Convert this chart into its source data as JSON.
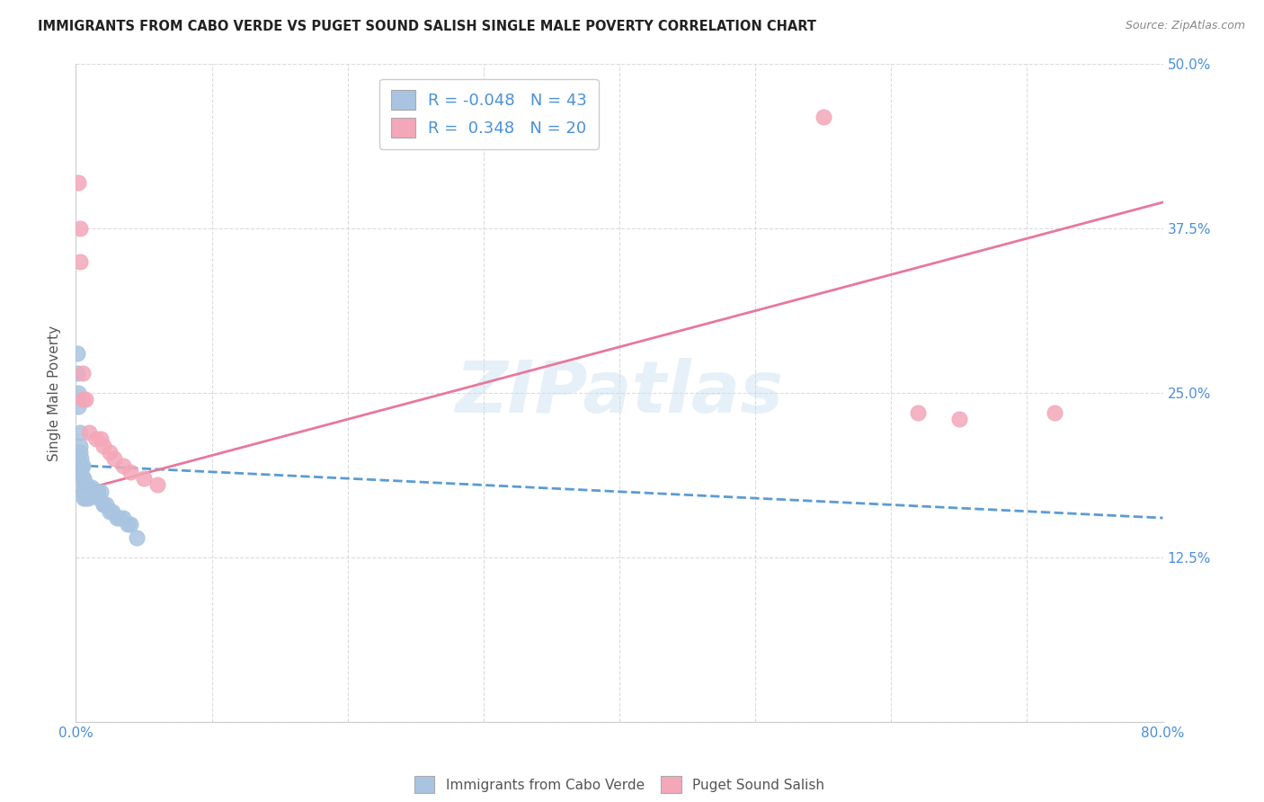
{
  "title": "IMMIGRANTS FROM CABO VERDE VS PUGET SOUND SALISH SINGLE MALE POVERTY CORRELATION CHART",
  "source": "Source: ZipAtlas.com",
  "ylabel": "Single Male Poverty",
  "xlim": [
    0.0,
    0.8
  ],
  "ylim": [
    0.0,
    0.5
  ],
  "blue_color": "#a8c4e0",
  "pink_color": "#f4a7b9",
  "blue_line_color": "#5b9bd5",
  "pink_line_color": "#e8789a",
  "blue_R": -0.048,
  "blue_N": 43,
  "pink_R": 0.348,
  "pink_N": 20,
  "legend_label_blue": "Immigrants from Cabo Verde",
  "legend_label_pink": "Puget Sound Salish",
  "watermark": "ZIPatlas",
  "blue_scatter_x": [
    0.001,
    0.001,
    0.002,
    0.002,
    0.003,
    0.003,
    0.003,
    0.003,
    0.004,
    0.004,
    0.004,
    0.005,
    0.005,
    0.005,
    0.006,
    0.006,
    0.006,
    0.007,
    0.007,
    0.008,
    0.008,
    0.009,
    0.009,
    0.01,
    0.01,
    0.012,
    0.012,
    0.014,
    0.015,
    0.016,
    0.017,
    0.018,
    0.02,
    0.02,
    0.022,
    0.025,
    0.027,
    0.03,
    0.032,
    0.035,
    0.038,
    0.04,
    0.045
  ],
  "blue_scatter_y": [
    0.28,
    0.265,
    0.25,
    0.24,
    0.22,
    0.21,
    0.205,
    0.195,
    0.2,
    0.195,
    0.19,
    0.195,
    0.185,
    0.175,
    0.185,
    0.18,
    0.17,
    0.175,
    0.17,
    0.18,
    0.175,
    0.175,
    0.17,
    0.175,
    0.175,
    0.175,
    0.178,
    0.175,
    0.175,
    0.175,
    0.17,
    0.175,
    0.165,
    0.165,
    0.165,
    0.16,
    0.16,
    0.155,
    0.155,
    0.155,
    0.15,
    0.15,
    0.14
  ],
  "pink_scatter_x": [
    0.002,
    0.003,
    0.003,
    0.005,
    0.005,
    0.007,
    0.01,
    0.015,
    0.018,
    0.02,
    0.025,
    0.028,
    0.035,
    0.04,
    0.05,
    0.06,
    0.55,
    0.62,
    0.65,
    0.72
  ],
  "pink_scatter_y": [
    0.41,
    0.375,
    0.35,
    0.265,
    0.245,
    0.245,
    0.22,
    0.215,
    0.215,
    0.21,
    0.205,
    0.2,
    0.195,
    0.19,
    0.185,
    0.18,
    0.46,
    0.235,
    0.23,
    0.235
  ],
  "blue_trend_x0": 0.0,
  "blue_trend_x1": 0.8,
  "blue_trend_y0": 0.195,
  "blue_trend_y1": 0.155,
  "pink_trend_x0": 0.0,
  "pink_trend_x1": 0.8,
  "pink_trend_y0": 0.175,
  "pink_trend_y1": 0.395,
  "bg_color": "#ffffff",
  "grid_color": "#cccccc"
}
